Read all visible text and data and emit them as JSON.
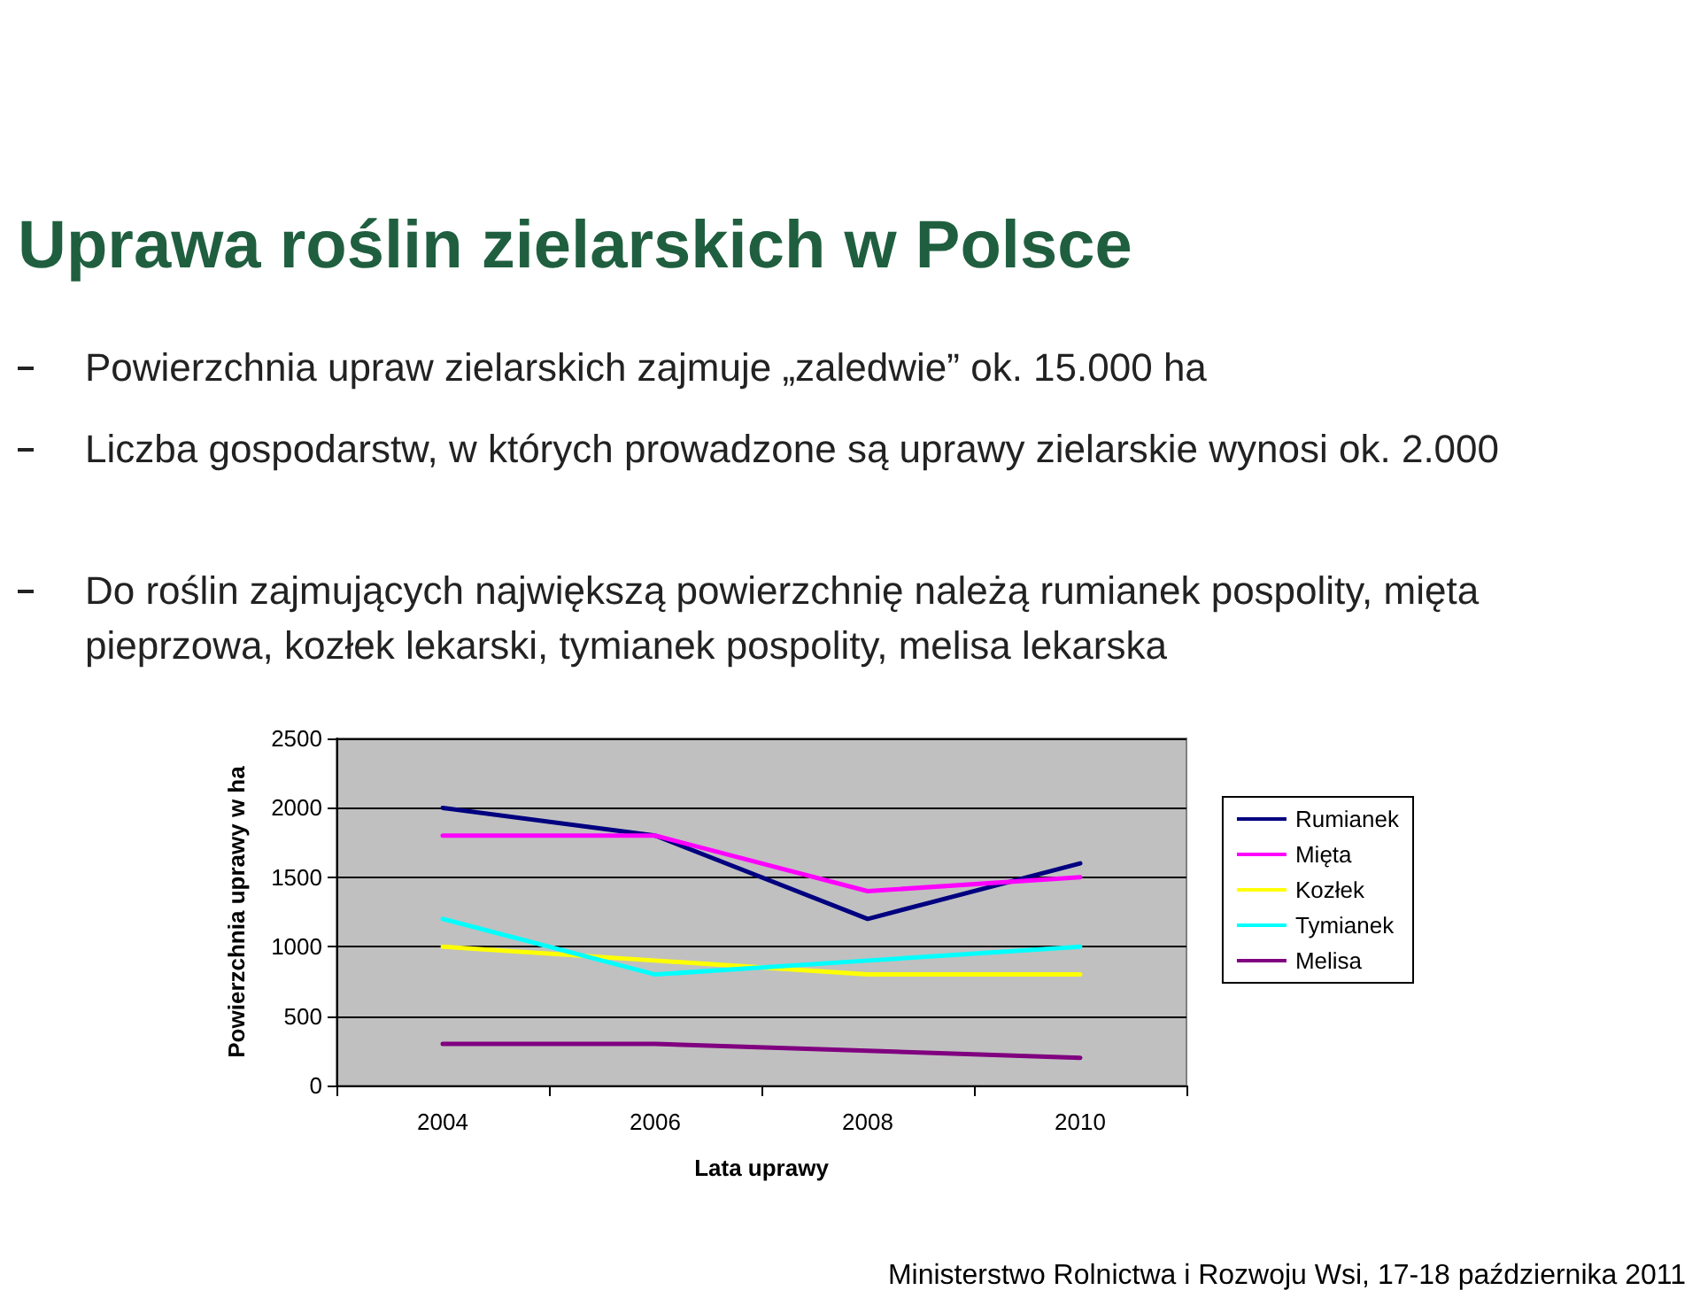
{
  "chart_data": {
    "type": "line",
    "title": "Uprawa roślin zielarskich w Polsce",
    "annotations": [
      "Powierzchnia upraw zielarskich zajmuje „zaledwie” ok. 15.000 ha",
      "Liczba gospodarstw, w których prowadzone są uprawy zielarskie wynosi ok. 2.000",
      "Do roślin zajmujących największą powierzchnię należą rumianek pospolity, mięta pieprzowa, kozłek lekarski, tymianek pospolity, melisa lekarska",
      "Ministerstwo Rolnictwa i Rozwoju Wsi, 17-18 października 2011"
    ],
    "xlabel": "Lata uprawy",
    "ylabel": "Powierzchnia uprawy w ha",
    "categories": [
      "2004",
      "2006",
      "2008",
      "2010"
    ],
    "series": [
      {
        "name": "Rumianek",
        "color": "#000080",
        "values": [
          2000,
          1800,
          1200,
          1600
        ]
      },
      {
        "name": "Mięta",
        "color": "#ff00ff",
        "values": [
          1800,
          1800,
          1400,
          1500
        ]
      },
      {
        "name": "Kozłek",
        "color": "#ffff00",
        "values": [
          1000,
          900,
          800,
          800
        ]
      },
      {
        "name": "Tymianek",
        "color": "#00ffff",
        "values": [
          1200,
          800,
          900,
          1000
        ]
      },
      {
        "name": "Melisa",
        "color": "#800080",
        "values": [
          300,
          300,
          250,
          200
        ]
      }
    ],
    "ylim": [
      0,
      2500
    ],
    "yticks": [
      0,
      500,
      1000,
      1500,
      2000,
      2500
    ],
    "grid": "y",
    "legend": "right",
    "marker": "none",
    "line_style": "solid"
  }
}
